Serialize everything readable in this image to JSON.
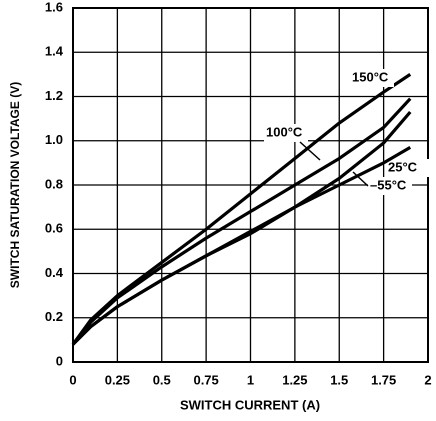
{
  "chart_data": {
    "type": "line",
    "x_label": "SWITCH CURRENT (A)",
    "y_label": "SWITCH SATURATION VOLTAGE (V)",
    "x": [
      0,
      0.1,
      0.25,
      0.5,
      0.75,
      1,
      1.25,
      1.5,
      1.75,
      1.9
    ],
    "series": [
      {
        "name": "150°C",
        "color": "#000000",
        "values": [
          0.08,
          0.19,
          0.3,
          0.45,
          0.6,
          0.76,
          0.92,
          1.08,
          1.22,
          1.3
        ]
      },
      {
        "name": "100°C",
        "color": "#000000",
        "values": [
          0.08,
          0.18,
          0.29,
          0.43,
          0.56,
          0.68,
          0.8,
          0.92,
          1.06,
          1.19
        ]
      },
      {
        "name": "25°C",
        "color": "#000000",
        "values": [
          0.08,
          0.16,
          0.25,
          0.37,
          0.48,
          0.58,
          0.7,
          0.83,
          0.99,
          1.13
        ]
      },
      {
        "name": "–55°C",
        "color": "#000000",
        "values": [
          0.08,
          0.16,
          0.25,
          0.37,
          0.48,
          0.59,
          0.7,
          0.8,
          0.9,
          0.97
        ]
      }
    ],
    "xlim": [
      0,
      2
    ],
    "ylim": [
      0,
      1.6
    ],
    "xticks": [
      0,
      0.25,
      0.5,
      0.75,
      1,
      1.25,
      1.5,
      1.75,
      2
    ],
    "yticks": [
      0,
      0.2,
      0.4,
      0.6,
      0.8,
      {
        "value": 1,
        "label": "1.0"
      },
      1.2,
      1.4,
      1.6
    ],
    "grid": true
  }
}
